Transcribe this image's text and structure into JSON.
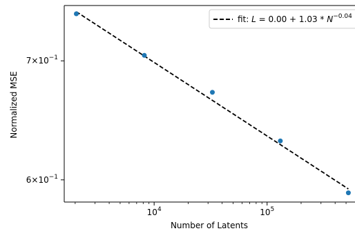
{
  "chart_data": {
    "type": "scatter",
    "xlabel": "Number of Latents",
    "ylabel": "Normalized MSE",
    "x_scale": "log",
    "y_scale": "log",
    "xlim": [
      1600,
      600000
    ],
    "ylim": [
      0.583,
      0.752
    ],
    "x_ticks": [
      {
        "value": 10000,
        "base": "10",
        "exp": "4"
      },
      {
        "value": 100000,
        "base": "10",
        "exp": "5"
      }
    ],
    "y_ticks": [
      {
        "value": 0.6,
        "mant": "6",
        "times": "×",
        "base": "10",
        "exp": "−1"
      },
      {
        "value": 0.7,
        "mant": "7",
        "times": "×",
        "base": "10",
        "exp": "−1"
      }
    ],
    "x_minor_ticks": [
      2000,
      3000,
      4000,
      5000,
      6000,
      7000,
      8000,
      9000,
      20000,
      30000,
      40000,
      50000,
      60000,
      70000,
      80000,
      90000,
      200000,
      300000,
      400000,
      500000
    ],
    "series": [
      {
        "kind": "points",
        "color": "#1f77b4",
        "x": [
          2048,
          8192,
          32768,
          131072,
          524288
        ],
        "y": [
          0.744,
          0.705,
          0.672,
          0.631,
          0.59
        ]
      },
      {
        "kind": "fit-line",
        "color": "#000000",
        "style": "dashed",
        "x": [
          2048,
          524288
        ],
        "y": [
          0.746,
          0.593
        ]
      }
    ],
    "legend": {
      "position": "upper-right",
      "prefix": "fit: ",
      "L": "L",
      "eq_mid": " = 0.00 + 1.03 * ",
      "N": "N",
      "exp": "−0.04"
    },
    "grid": false
  }
}
